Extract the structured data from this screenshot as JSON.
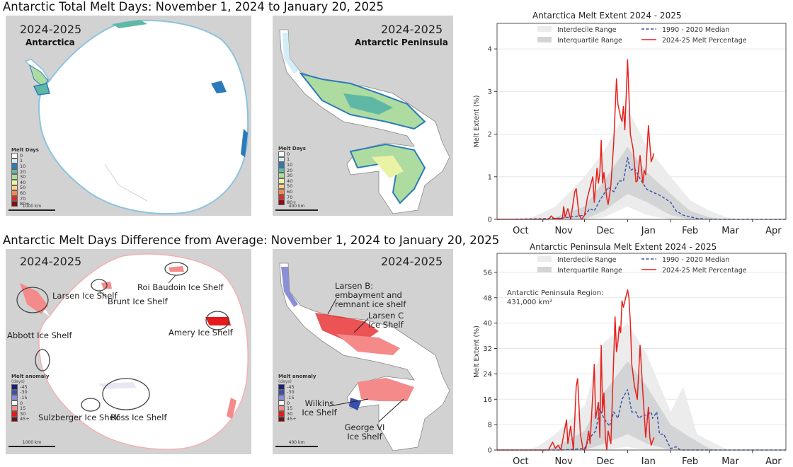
{
  "titles": {
    "top": "Antarctic Total Melt Days: November 1, 2024 to January 20, 2025",
    "bottom": "Antarctic Melt Days Difference from Average: November 1, 2024 to January 20, 2025"
  },
  "maps": {
    "total_antarctica": {
      "season": "2024-2025",
      "region": "Antarctica",
      "scale": "1000 km"
    },
    "total_peninsula": {
      "season": "2024-2025",
      "region": "Antarctic Peninsula",
      "scale": "400 km"
    },
    "anomaly_antarctica": {
      "season": "2024-2025",
      "scale": "1000 km",
      "labels": [
        "Larsen Ice Shelf",
        "Brunt Ice Shelf",
        "Roi Baudoin Ice Shelf",
        "Amery Ice Shelf",
        "Abbott Ice Shelf",
        "Sulzberger Ice Shelf",
        "Ross Ice Shelf"
      ]
    },
    "anomaly_peninsula": {
      "season": "2024-2025",
      "scale": "400 km",
      "labels": [
        "Larsen B: embayment and remnant ice shelf",
        "Larsen C Ice Shelf",
        "Wilkins Ice Shelf",
        "George VI Ice Shelf"
      ]
    },
    "melt_days_legend": {
      "title": "Melt Days",
      "items": [
        {
          "label": "0",
          "color": "#ffffff"
        },
        {
          "label": "1",
          "color": "#d4eef8"
        },
        {
          "label": "10",
          "color": "#2b7bba"
        },
        {
          "label": "20",
          "color": "#5fb8a6"
        },
        {
          "label": "30",
          "color": "#aedca0"
        },
        {
          "label": "40",
          "color": "#eaf2a6"
        },
        {
          "label": "50",
          "color": "#fbd08a"
        },
        {
          "label": "60",
          "color": "#f4894f"
        },
        {
          "label": "70",
          "color": "#e0292a"
        },
        {
          "label": "80+",
          "color": "#8a0c12"
        }
      ]
    },
    "anomaly_legend": {
      "title": "Melt anomaly",
      "unit": "(days)",
      "items": [
        {
          "label": "-45",
          "color": "#1e1e7a"
        },
        {
          "label": "-30",
          "color": "#3a4fb0"
        },
        {
          "label": "-15",
          "color": "#8a8fd6"
        },
        {
          "label": "0",
          "color": "#ffffff"
        },
        {
          "label": "15",
          "color": "#f48a8a"
        },
        {
          "label": "30",
          "color": "#e41a1c"
        },
        {
          "label": "45+",
          "color": "#7a0c0c"
        }
      ]
    }
  },
  "chart_data": [
    {
      "type": "line",
      "title": "Antarctica Melt Extent 2024 - 2025",
      "ylabel": "Melt Extent (%)",
      "xlabel": "",
      "xlim": [
        "2024-09-29",
        "2025-04-25"
      ],
      "ylim": [
        0,
        4.6
      ],
      "yticks": [
        0,
        1,
        2,
        3,
        4
      ],
      "xtick_labels": [
        "Oct",
        "Nov",
        "Dec",
        "Jan",
        "Feb",
        "Mar",
        "Apr"
      ],
      "grid": "horizontal",
      "legend_placement": "top",
      "colors": {
        "interdecile": "#ececec",
        "interquartile": "#d3d4d6",
        "median": "#3350a8",
        "current": "#e8201c"
      },
      "interdecile": {
        "name": "Interdecile Range",
        "points": [
          [
            "2024-10-20",
            0,
            0
          ],
          [
            "2024-10-28",
            0,
            0.1
          ],
          [
            "2024-11-10",
            0,
            0.3
          ],
          [
            "2024-12-01",
            0,
            1.0
          ],
          [
            "2024-12-15",
            0.05,
            1.6
          ],
          [
            "2025-01-01",
            0.3,
            2.6
          ],
          [
            "2025-01-15",
            0.1,
            1.7
          ],
          [
            "2025-02-01",
            0,
            1.0
          ],
          [
            "2025-02-15",
            0,
            0.45
          ],
          [
            "2025-03-01",
            0,
            0.2
          ],
          [
            "2025-03-15",
            0,
            0.03
          ],
          [
            "2025-03-25",
            0,
            0
          ]
        ]
      },
      "interquartile": {
        "name": "Interquartile Range",
        "points": [
          [
            "2024-11-01",
            0,
            0
          ],
          [
            "2024-11-10",
            0,
            0.05
          ],
          [
            "2024-12-01",
            0,
            0.3
          ],
          [
            "2024-12-15",
            0.2,
            0.9
          ],
          [
            "2025-01-01",
            0.6,
            1.7
          ],
          [
            "2025-01-15",
            0.4,
            1.1
          ],
          [
            "2025-02-01",
            0.1,
            0.6
          ],
          [
            "2025-02-15",
            0,
            0.2
          ],
          [
            "2025-03-01",
            0,
            0.05
          ],
          [
            "2025-03-10",
            0,
            0
          ]
        ]
      },
      "series": [
        {
          "name": "1990 - 2020 Median",
          "style": "dashed",
          "points": [
            [
              "2024-09-29",
              0
            ],
            [
              "2024-11-10",
              0.02
            ],
            [
              "2024-11-20",
              0.05
            ],
            [
              "2024-12-01",
              0.1
            ],
            [
              "2024-12-05",
              0.25
            ],
            [
              "2024-12-08",
              0.2
            ],
            [
              "2024-12-12",
              0.45
            ],
            [
              "2024-12-18",
              0.75
            ],
            [
              "2024-12-22",
              0.65
            ],
            [
              "2024-12-26",
              0.9
            ],
            [
              "2024-12-29",
              0.9
            ],
            [
              "2025-01-01",
              1.45
            ],
            [
              "2025-01-03",
              1.15
            ],
            [
              "2025-01-06",
              1.2
            ],
            [
              "2025-01-10",
              0.95
            ],
            [
              "2025-01-15",
              0.7
            ],
            [
              "2025-01-25",
              0.55
            ],
            [
              "2025-02-01",
              0.4
            ],
            [
              "2025-02-05",
              0.2
            ],
            [
              "2025-02-10",
              0.1
            ],
            [
              "2025-02-20",
              0.02
            ],
            [
              "2025-03-01",
              0
            ],
            [
              "2025-04-25",
              0
            ]
          ]
        },
        {
          "name": "2024-25 Melt Percentage",
          "style": "solid",
          "points": [
            [
              "2024-09-29",
              0
            ],
            [
              "2024-11-05",
              0
            ],
            [
              "2024-11-07",
              0.08
            ],
            [
              "2024-11-09",
              0.02
            ],
            [
              "2024-11-15",
              0.02
            ],
            [
              "2024-11-16",
              0.3
            ],
            [
              "2024-11-17",
              0.05
            ],
            [
              "2024-11-19",
              0.25
            ],
            [
              "2024-11-21",
              0
            ],
            [
              "2024-11-24",
              0.65
            ],
            [
              "2024-11-25",
              0.72
            ],
            [
              "2024-11-27",
              0.1
            ],
            [
              "2024-11-29",
              0
            ],
            [
              "2024-12-01",
              0.1
            ],
            [
              "2024-12-03",
              0.5
            ],
            [
              "2024-12-05",
              0.75
            ],
            [
              "2024-12-07",
              1.0
            ],
            [
              "2024-12-08",
              0.4
            ],
            [
              "2024-12-10",
              1.2
            ],
            [
              "2024-12-11",
              0.85
            ],
            [
              "2024-12-12",
              1.1
            ],
            [
              "2024-12-13",
              1.85
            ],
            [
              "2024-12-14",
              0.85
            ],
            [
              "2024-12-15",
              1.1
            ],
            [
              "2024-12-17",
              0.5
            ],
            [
              "2024-12-18",
              0.35
            ],
            [
              "2024-12-20",
              0.8
            ],
            [
              "2024-12-22",
              1.8
            ],
            [
              "2024-12-24",
              3.3
            ],
            [
              "2024-12-25",
              2.7
            ],
            [
              "2024-12-27",
              2.4
            ],
            [
              "2024-12-28",
              2.3
            ],
            [
              "2024-12-29",
              2.65
            ],
            [
              "2024-12-30",
              2.1
            ],
            [
              "2025-01-01",
              3.75
            ],
            [
              "2025-01-03",
              2.0
            ],
            [
              "2025-01-05",
              1.65
            ],
            [
              "2025-01-07",
              0.88
            ],
            [
              "2025-01-08",
              0.9
            ],
            [
              "2025-01-10",
              1.5
            ],
            [
              "2025-01-12",
              0.85
            ],
            [
              "2025-01-13",
              1.15
            ],
            [
              "2025-01-14",
              1.05
            ],
            [
              "2025-01-16",
              2.2
            ],
            [
              "2025-01-18",
              1.35
            ],
            [
              "2025-01-20",
              1.55
            ]
          ]
        }
      ]
    },
    {
      "type": "line",
      "title": "Antarctic Peninsula Melt Extent 2024 - 2025",
      "annotation": "Antarctic Peninsula Region:",
      "annotation_value": "431,000 km²",
      "ylabel": "Melt Extent (%)",
      "xlabel": "",
      "xlim": [
        "2024-09-29",
        "2025-04-25"
      ],
      "ylim": [
        0,
        62
      ],
      "yticks": [
        0,
        8,
        16,
        24,
        32,
        40,
        48,
        56
      ],
      "xtick_labels": [
        "Oct",
        "Nov",
        "Dec",
        "Jan",
        "Feb",
        "Mar",
        "Apr"
      ],
      "grid": "horizontal",
      "legend_placement": "top",
      "colors": {
        "interdecile": "#ececec",
        "interquartile": "#d3d4d6",
        "median": "#3350a8",
        "current": "#e8201c"
      },
      "interdecile": {
        "name": "Interdecile Range",
        "points": [
          [
            "2024-10-20",
            0,
            0
          ],
          [
            "2024-10-28",
            0,
            1
          ],
          [
            "2024-11-10",
            0,
            5
          ],
          [
            "2024-12-01",
            0,
            14
          ],
          [
            "2024-12-15",
            0,
            34
          ],
          [
            "2025-01-01",
            1,
            40
          ],
          [
            "2025-01-15",
            0,
            30
          ],
          [
            "2025-02-01",
            0,
            12
          ],
          [
            "2025-02-10",
            0,
            20
          ],
          [
            "2025-02-20",
            0,
            5
          ],
          [
            "2025-03-05",
            0,
            2
          ],
          [
            "2025-03-15",
            0,
            0
          ]
        ]
      },
      "interquartile": {
        "name": "Interquartile Range",
        "points": [
          [
            "2024-11-01",
            0,
            0
          ],
          [
            "2024-11-10",
            0,
            1
          ],
          [
            "2024-12-01",
            0,
            6
          ],
          [
            "2024-12-15",
            2,
            18
          ],
          [
            "2025-01-01",
            5,
            28
          ],
          [
            "2025-01-15",
            2,
            20
          ],
          [
            "2025-02-01",
            0,
            8
          ],
          [
            "2025-02-15",
            0,
            4
          ],
          [
            "2025-03-01",
            0,
            0.5
          ],
          [
            "2025-03-08",
            0,
            0
          ]
        ]
      },
      "series": [
        {
          "name": "1990 - 2020 Median",
          "style": "dashed",
          "points": [
            [
              "2024-09-29",
              0
            ],
            [
              "2024-11-15",
              0
            ],
            [
              "2024-12-01",
              0.5
            ],
            [
              "2024-12-05",
              4
            ],
            [
              "2024-12-09",
              6
            ],
            [
              "2024-12-12",
              13
            ],
            [
              "2024-12-15",
              10
            ],
            [
              "2024-12-19",
              7.5
            ],
            [
              "2024-12-22",
              12
            ],
            [
              "2024-12-25",
              10
            ],
            [
              "2024-12-28",
              16
            ],
            [
              "2025-01-01",
              19
            ],
            [
              "2025-01-04",
              12
            ],
            [
              "2025-01-07",
              12
            ],
            [
              "2025-01-09",
              10
            ],
            [
              "2025-01-12",
              11
            ],
            [
              "2025-01-15",
              11
            ],
            [
              "2025-01-18",
              12
            ],
            [
              "2025-01-19",
              10
            ],
            [
              "2025-01-22",
              12
            ],
            [
              "2025-01-24",
              5
            ],
            [
              "2025-01-27",
              5
            ],
            [
              "2025-02-01",
              0.5
            ],
            [
              "2025-02-05",
              1
            ],
            [
              "2025-02-08",
              0
            ],
            [
              "2025-04-25",
              0
            ]
          ]
        },
        {
          "name": "2024-25 Melt Percentage",
          "style": "solid",
          "points": [
            [
              "2024-09-29",
              0
            ],
            [
              "2024-11-05",
              0
            ],
            [
              "2024-11-08",
              2.5
            ],
            [
              "2024-11-10",
              0.5
            ],
            [
              "2024-11-12",
              1.5
            ],
            [
              "2024-11-14",
              0
            ],
            [
              "2024-11-18",
              9.5
            ],
            [
              "2024-11-19",
              2
            ],
            [
              "2024-11-21",
              7.5
            ],
            [
              "2024-11-23",
              0
            ],
            [
              "2024-11-25",
              20
            ],
            [
              "2024-11-26",
              22.5
            ],
            [
              "2024-11-28",
              5
            ],
            [
              "2024-11-30",
              0
            ],
            [
              "2024-12-02",
              0.5
            ],
            [
              "2024-12-04",
              6
            ],
            [
              "2024-12-05",
              2
            ],
            [
              "2024-12-07",
              18
            ],
            [
              "2024-12-08",
              27
            ],
            [
              "2024-12-09",
              10
            ],
            [
              "2024-12-11",
              15
            ],
            [
              "2024-12-12",
              4
            ],
            [
              "2024-12-13",
              33
            ],
            [
              "2024-12-14",
              12
            ],
            [
              "2024-12-15",
              18
            ],
            [
              "2024-12-16",
              4
            ],
            [
              "2024-12-17",
              0
            ],
            [
              "2024-12-18",
              6
            ],
            [
              "2024-12-20",
              2
            ],
            [
              "2024-12-23",
              42
            ],
            [
              "2024-12-24",
              31
            ],
            [
              "2024-12-25",
              34
            ],
            [
              "2024-12-26",
              39
            ],
            [
              "2024-12-27",
              37
            ],
            [
              "2024-12-28",
              47
            ],
            [
              "2024-12-29",
              45
            ],
            [
              "2025-01-01",
              50.5
            ],
            [
              "2025-01-02",
              48
            ],
            [
              "2025-01-03",
              40
            ],
            [
              "2025-01-04",
              27
            ],
            [
              "2025-01-06",
              20
            ],
            [
              "2025-01-08",
              16
            ],
            [
              "2025-01-10",
              33
            ],
            [
              "2025-01-12",
              18
            ],
            [
              "2025-01-14",
              4
            ],
            [
              "2025-01-16",
              13.5
            ],
            [
              "2025-01-17",
              4
            ],
            [
              "2025-01-18",
              1.5
            ],
            [
              "2025-01-20",
              4
            ]
          ]
        }
      ]
    }
  ]
}
